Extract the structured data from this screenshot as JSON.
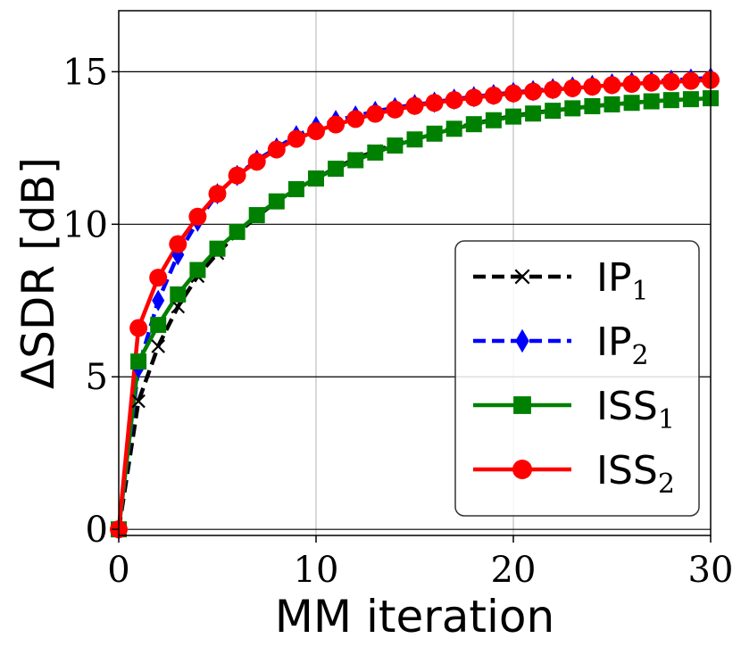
{
  "chart_data": {
    "type": "line",
    "title": "",
    "xlabel": "MM iteration",
    "ylabel": "ΔSDR [dB]",
    "xlim": [
      0,
      30
    ],
    "ylim": [
      -0.2,
      17
    ],
    "xticks": [
      "0",
      "10",
      "20",
      "30"
    ],
    "yticks": [
      "0",
      "5",
      "10",
      "15"
    ],
    "xtick_values": [
      0,
      10,
      20,
      30
    ],
    "ytick_values": [
      0,
      5,
      10,
      15
    ],
    "grid": true,
    "legend_position": "lower-right",
    "x": [
      0,
      1,
      2,
      3,
      4,
      5,
      6,
      7,
      8,
      9,
      10,
      11,
      12,
      13,
      14,
      15,
      16,
      17,
      18,
      19,
      20,
      21,
      22,
      23,
      24,
      25,
      26,
      27,
      28,
      29,
      30
    ],
    "series": [
      {
        "name": "IP",
        "subscript": "1",
        "color": "#000000",
        "dash": "dashed",
        "marker": "x",
        "values": [
          0,
          4.2,
          6.0,
          7.3,
          8.3,
          9.05,
          9.7,
          10.25,
          10.75,
          11.15,
          11.5,
          11.85,
          12.15,
          12.4,
          12.62,
          12.82,
          13.0,
          13.15,
          13.3,
          13.43,
          13.55,
          13.65,
          13.73,
          13.8,
          13.87,
          13.93,
          13.98,
          14.03,
          14.07,
          14.1,
          14.12
        ]
      },
      {
        "name": "IP",
        "subscript": "2",
        "color": "#0000ff",
        "dash": "dashed",
        "marker": "diamond",
        "values": [
          0,
          5.3,
          7.5,
          9.0,
          10.1,
          11.0,
          11.6,
          12.1,
          12.5,
          12.9,
          13.2,
          13.4,
          13.55,
          13.7,
          13.82,
          13.92,
          14.0,
          14.1,
          14.18,
          14.25,
          14.32,
          14.38,
          14.44,
          14.5,
          14.55,
          14.6,
          14.65,
          14.68,
          14.72,
          14.76,
          14.8
        ]
      },
      {
        "name": "ISS",
        "subscript": "1",
        "color": "#008000",
        "dash": "solid",
        "marker": "square",
        "values": [
          0,
          5.5,
          6.7,
          7.7,
          8.5,
          9.2,
          9.75,
          10.3,
          10.75,
          11.15,
          11.5,
          11.82,
          12.1,
          12.35,
          12.58,
          12.78,
          12.97,
          13.13,
          13.28,
          13.41,
          13.53,
          13.63,
          13.72,
          13.8,
          13.87,
          13.93,
          13.98,
          14.03,
          14.07,
          14.1,
          14.13
        ]
      },
      {
        "name": "ISS",
        "subscript": "2",
        "color": "#ff0000",
        "dash": "solid",
        "marker": "circle",
        "values": [
          0,
          6.6,
          8.25,
          9.35,
          10.25,
          11.0,
          11.6,
          12.05,
          12.45,
          12.8,
          13.05,
          13.27,
          13.45,
          13.62,
          13.76,
          13.88,
          13.98,
          14.07,
          14.15,
          14.22,
          14.29,
          14.35,
          14.41,
          14.46,
          14.51,
          14.56,
          14.6,
          14.64,
          14.67,
          14.7,
          14.73
        ]
      }
    ]
  }
}
